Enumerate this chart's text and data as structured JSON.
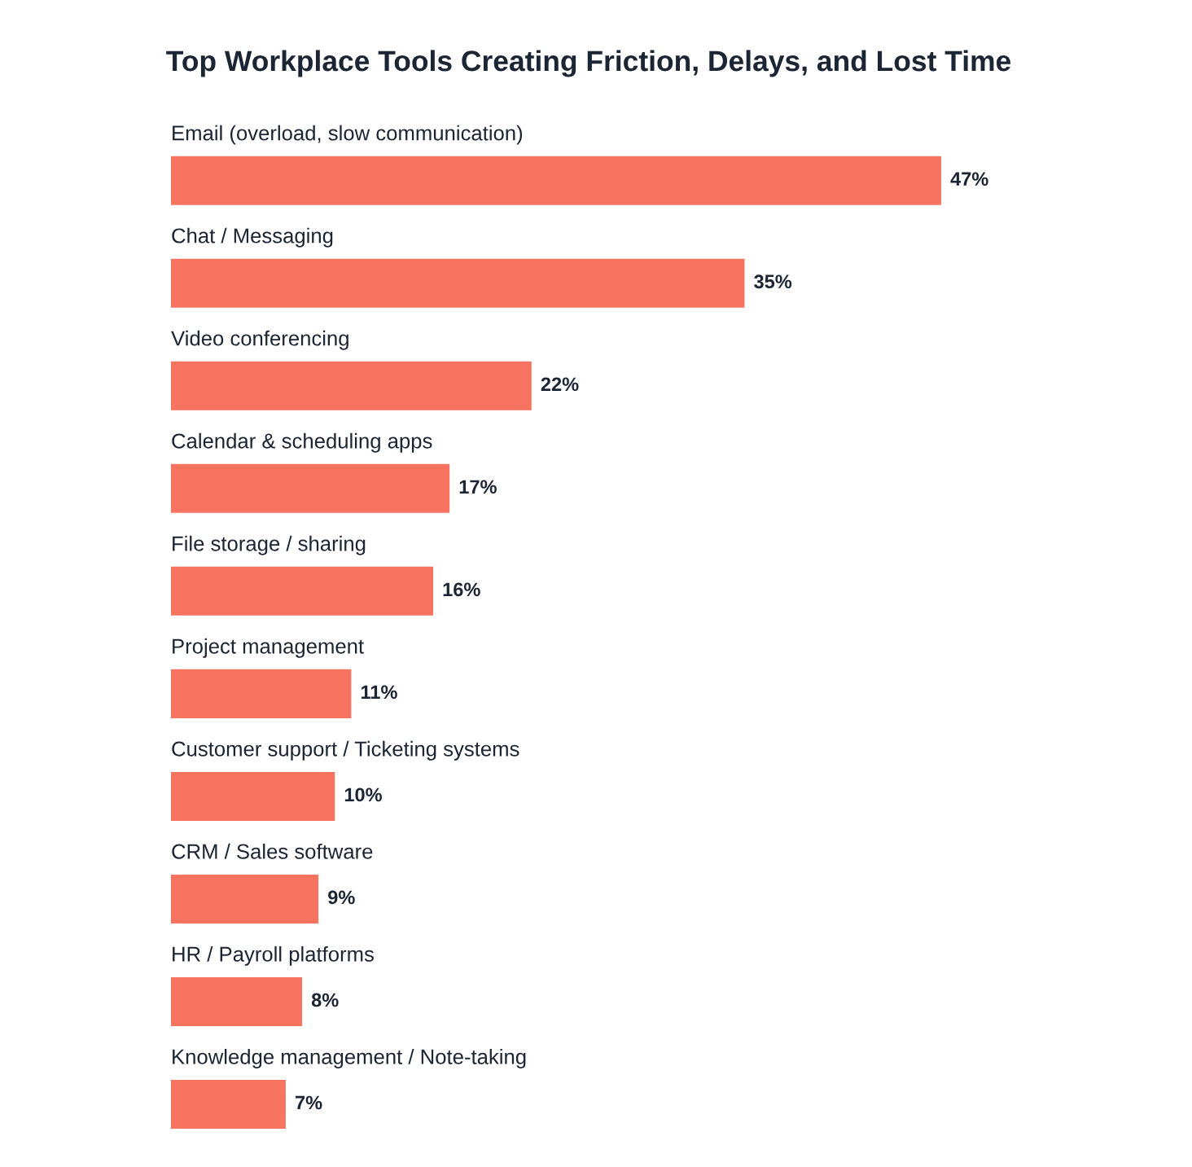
{
  "chart_data": {
    "type": "bar",
    "orientation": "horizontal",
    "title": "Top Workplace Tools Creating Friction, Delays, and Lost Time",
    "categories": [
      "Email (overload, slow communication)",
      "Chat / Messaging",
      "Video conferencing",
      "Calendar & scheduling apps",
      "File storage / sharing",
      "Project management",
      "Customer support / Ticketing systems",
      "CRM / Sales software",
      "HR / Payroll platforms",
      "Knowledge management / Note-taking"
    ],
    "values": [
      47,
      35,
      22,
      17,
      16,
      11,
      10,
      9,
      8,
      7
    ],
    "value_labels": [
      "47%",
      "35%",
      "22%",
      "17%",
      "16%",
      "11%",
      "10%",
      "9%",
      "8%",
      "7%"
    ],
    "color": "#f6735f"
  }
}
